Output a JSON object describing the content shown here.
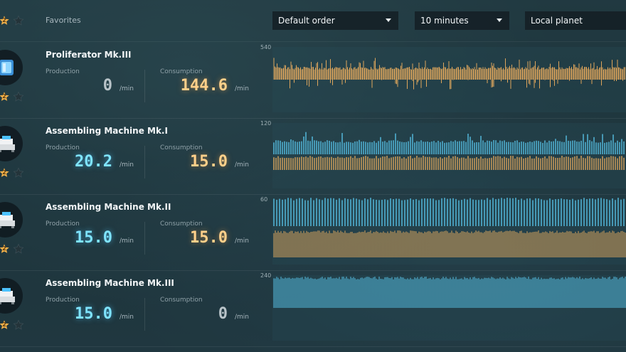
{
  "header": {
    "favorites_label": "Favorites",
    "favorites_badge": "2",
    "sort_dropdown": "Default order",
    "time_dropdown": "10 minutes",
    "scope_dropdown": "Local planet"
  },
  "labels": {
    "production": "Production",
    "consumption": "Consumption",
    "unit": "/min"
  },
  "items": [
    {
      "name": "Proliferator Mk.III",
      "icon": "proliferator-icon",
      "badge": "2",
      "production": "0",
      "consumption": "144.6",
      "axis_max": "540",
      "production_active": false,
      "consumption_active": true
    },
    {
      "name": "Assembling Machine Mk.I",
      "icon": "assembler-icon",
      "badge": "2",
      "production": "20.2",
      "consumption": "15.0",
      "axis_max": "120",
      "production_active": true,
      "consumption_active": true
    },
    {
      "name": "Assembling Machine Mk.II",
      "icon": "assembler-icon",
      "badge": "2",
      "production": "15.0",
      "consumption": "15.0",
      "axis_max": "60",
      "production_active": true,
      "consumption_active": true
    },
    {
      "name": "Assembling Machine Mk.III",
      "icon": "assembler-icon",
      "badge": "2",
      "production": "15.0",
      "consumption": "0",
      "axis_max": "240",
      "production_active": true,
      "consumption_active": false
    }
  ],
  "colors": {
    "production": "#5fd6ff",
    "consumption": "#ffb860",
    "inactive": "#b9c4c9"
  }
}
